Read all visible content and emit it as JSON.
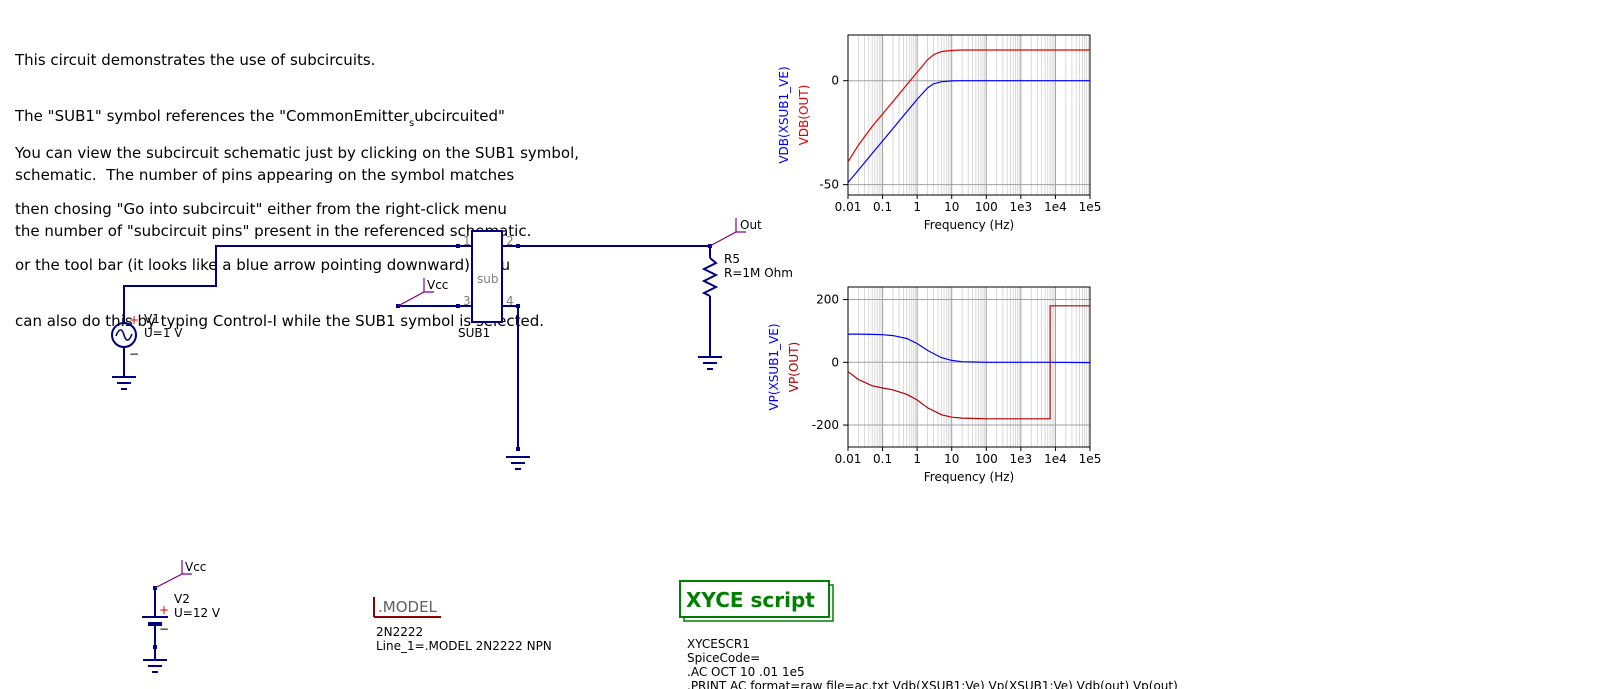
{
  "description": {
    "lines_a": [
      "This circuit demonstrates the use of subcircuits.",
      "The \"SUB1\" symbol references the \"CommonEmitter",
      "schematic.  The number of pins appearing on the symbol matches",
      "the number of \"subcircuit pins\" present in the referenced schematic."
    ],
    "line2_subscript": "s",
    "line2_tail": "ubcircuited\"",
    "lines_b": [
      "You can view the subcircuit schematic just by clicking on the SUB1 symbol,",
      "then chosing \"Go into subcircuit\" either from the right-click menu",
      "or the tool bar (it looks like a blue arrow pointing downward).  You",
      "can also do this by typing Control-I while the SUB1 symbol is selected."
    ]
  },
  "schematic": {
    "v1": {
      "name": "V1",
      "value": "U=1 V",
      "plus": "+",
      "minus": "−"
    },
    "v2": {
      "name": "V2",
      "value": "U=12 V",
      "plus": "+",
      "minus": "−"
    },
    "sub1": {
      "name": "SUB1",
      "body_label": "sub",
      "pins": [
        "1",
        "2",
        "3",
        "4"
      ]
    },
    "r5": {
      "name": "R5",
      "value": "R=1M Ohm"
    },
    "labels": {
      "out": "Out",
      "vcc": "Vcc",
      "vcc2": "Vcc"
    },
    "model": {
      "title": ".MODEL",
      "name": "2N2222",
      "line": "Line_1=.MODEL 2N2222 NPN"
    },
    "xyce": {
      "title": "XYCE script",
      "lines": [
        "XYCESCR1",
        "SpiceCode=",
        ".AC OCT 10 .01 1e5",
        ".PRINT AC format=raw file=ac.txt Vdb(XSUB1:Ve) Vp(XSUB1:Ve) Vdb(out) Vp(out)"
      ]
    }
  },
  "colors": {
    "wire": "#000080",
    "label": "#800080",
    "red": "#e00000",
    "blue": "#0000ff",
    "darkred": "#b00000",
    "green": "#008000",
    "model": "#8b0000"
  },
  "chart_data": [
    {
      "type": "line",
      "title": "",
      "xlabel": "Frequency (Hz)",
      "ylabel_series": [
        "VDB(XSUB1_VE)",
        "VDB(OUT)"
      ],
      "xscale": "log",
      "xlim": [
        0.01,
        100000
      ],
      "ylim": [
        -55,
        22
      ],
      "xticks": [
        "0.01",
        "0.1",
        "1",
        "10",
        "100",
        "1e3",
        "1e4",
        "1e5"
      ],
      "yticks": [
        {
          "v": 0,
          "label": "0"
        },
        {
          "v": -50,
          "label": "-50"
        }
      ],
      "grid": true,
      "x": [
        0.01,
        0.02,
        0.05,
        0.1,
        0.2,
        0.5,
        1,
        2,
        3,
        5,
        10,
        20,
        100,
        1000,
        10000,
        100000
      ],
      "series": [
        {
          "name": "VDB(XSUB1_VE)",
          "color": "#0000ff",
          "values": [
            -49,
            -43,
            -35,
            -29,
            -23,
            -15,
            -9,
            -3.5,
            -1.5,
            -0.5,
            -0.1,
            0,
            0,
            0,
            0,
            0
          ]
        },
        {
          "name": "VDB(OUT)",
          "color": "#e00000",
          "values": [
            -39,
            -31,
            -22,
            -16,
            -10,
            -2,
            4,
            10,
            12.5,
            14,
            14.6,
            14.8,
            14.8,
            14.8,
            14.8,
            14.8
          ]
        }
      ]
    },
    {
      "type": "line",
      "title": "",
      "xlabel": "Frequency (Hz)",
      "ylabel_series": [
        "VP(XSUB1_VE)",
        "VP(OUT)"
      ],
      "xscale": "log",
      "xlim": [
        0.01,
        100000
      ],
      "ylim": [
        -270,
        240
      ],
      "xticks": [
        "0.01",
        "0.1",
        "1",
        "10",
        "100",
        "1e3",
        "1e4",
        "1e5"
      ],
      "yticks": [
        {
          "v": 200,
          "label": "200"
        },
        {
          "v": 0,
          "label": "0"
        },
        {
          "v": -200,
          "label": "-200"
        }
      ],
      "grid": true,
      "x": [
        0.01,
        0.02,
        0.05,
        0.1,
        0.2,
        0.5,
        1,
        2,
        5,
        10,
        20,
        50,
        100,
        1000,
        7000,
        7001,
        10000,
        100000
      ],
      "series": [
        {
          "name": "VP(XSUB1_VE)",
          "color": "#0000ff",
          "values": [
            90,
            90,
            89,
            88,
            85,
            76,
            60,
            38,
            15,
            6,
            2,
            1,
            0,
            0,
            0,
            0,
            0,
            -1
          ]
        },
        {
          "name": "VP(OUT)",
          "color": "#b00000",
          "values": [
            -30,
            -55,
            -75,
            -82,
            -88,
            -102,
            -120,
            -145,
            -167,
            -175,
            -178,
            -179,
            -180,
            -180,
            -180,
            180,
            180,
            180
          ]
        }
      ]
    }
  ]
}
